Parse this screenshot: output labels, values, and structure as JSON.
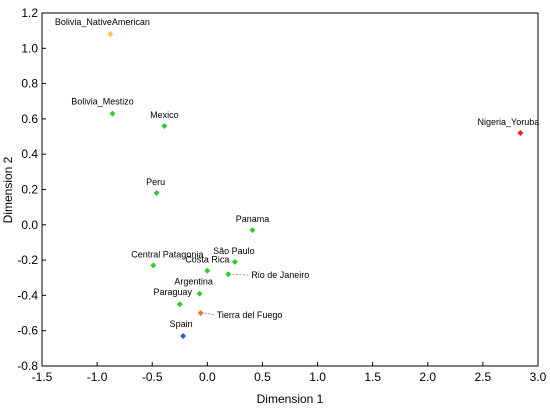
{
  "chart_data": {
    "type": "scatter",
    "title": "",
    "xlabel": "Dimension 1",
    "ylabel": "Dimension 2",
    "xlim": [
      -1.5,
      3.0
    ],
    "ylim": [
      -0.8,
      1.2
    ],
    "xticks": [
      "-1.5",
      "-1.0",
      "-0.5",
      "0.0",
      "0.5",
      "1.0",
      "1.5",
      "2.0",
      "2.5",
      "3.0"
    ],
    "yticks": [
      "-0.8",
      "-0.6",
      "-0.4",
      "-0.2",
      "0.0",
      "0.2",
      "0.4",
      "0.6",
      "0.8",
      "1.0",
      "1.2"
    ],
    "grid": false,
    "marker": "diamond",
    "points": [
      {
        "label": "Bolivia_NativeAmerican",
        "x": -0.88,
        "y": 1.08,
        "color": "#f5c542"
      },
      {
        "label": "Bolivia_Mestizo",
        "x": -0.86,
        "y": 0.63,
        "color": "#2ecc2e"
      },
      {
        "label": "Mexico",
        "x": -0.39,
        "y": 0.56,
        "color": "#2ecc2e"
      },
      {
        "label": "Nigeria_Yoruba",
        "x": 2.84,
        "y": 0.52,
        "color": "#ee2222"
      },
      {
        "label": "Peru",
        "x": -0.46,
        "y": 0.18,
        "color": "#2ecc2e"
      },
      {
        "label": "Panama",
        "x": 0.41,
        "y": -0.03,
        "color": "#2ecc2e"
      },
      {
        "label": "Central Patagonia",
        "x": -0.49,
        "y": -0.23,
        "color": "#2ecc2e"
      },
      {
        "label": "São Paulo",
        "x": 0.25,
        "y": -0.21,
        "color": "#2ecc2e"
      },
      {
        "label": "Costa Rica",
        "x": 0.0,
        "y": -0.26,
        "color": "#2ecc2e"
      },
      {
        "label": "Rio de Janeiro",
        "x": 0.19,
        "y": -0.28,
        "color": "#2ecc2e"
      },
      {
        "label": "Argentina",
        "x": -0.07,
        "y": -0.39,
        "color": "#2ecc2e"
      },
      {
        "label": "Paraguay",
        "x": -0.25,
        "y": -0.45,
        "color": "#2ecc2e"
      },
      {
        "label": "Tierra del Fuego",
        "x": -0.06,
        "y": -0.5,
        "color": "#f07a2a"
      },
      {
        "label": "Spain",
        "x": -0.22,
        "y": -0.63,
        "color": "#2a5fd6"
      }
    ]
  }
}
